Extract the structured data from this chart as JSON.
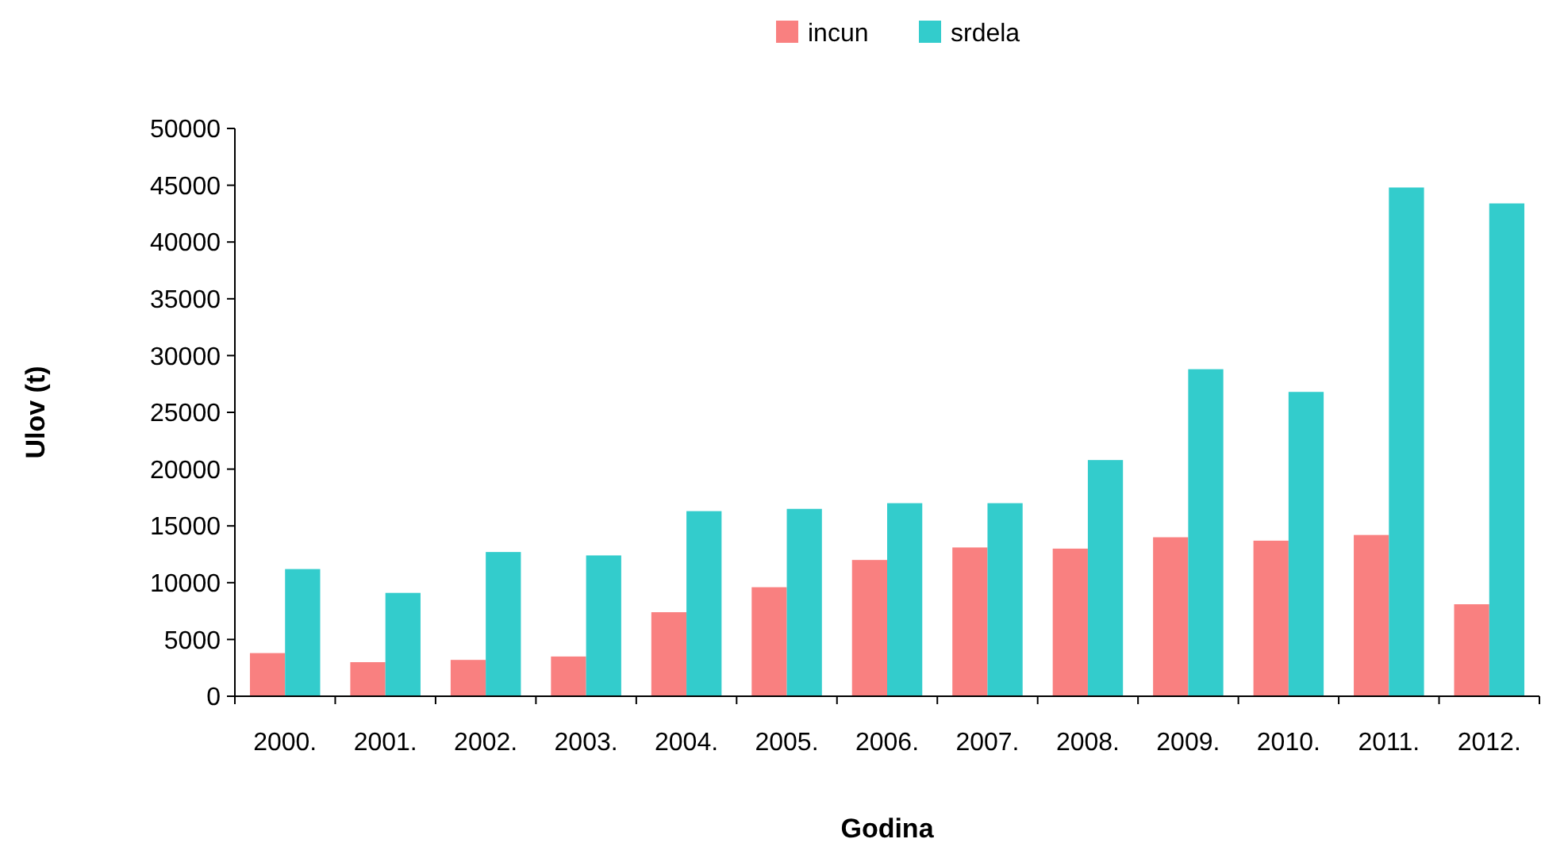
{
  "chart_data": {
    "type": "bar",
    "xlabel": "Godina",
    "ylabel": "Ulov (t)",
    "categories": [
      "2000.",
      "2001.",
      "2002.",
      "2003.",
      "2004.",
      "2005.",
      "2006.",
      "2007.",
      "2008.",
      "2009.",
      "2010.",
      "2011.",
      "2012."
    ],
    "series": [
      {
        "name": "incun",
        "color": "#f98080",
        "values": [
          3800,
          3000,
          3200,
          3500,
          7400,
          9600,
          12000,
          13100,
          13000,
          14000,
          13700,
          14200,
          8100
        ]
      },
      {
        "name": "srdela",
        "color": "#33cccc",
        "values": [
          11200,
          9100,
          12700,
          12400,
          16300,
          16500,
          17000,
          17000,
          20800,
          28800,
          26800,
          44800,
          43400
        ]
      }
    ],
    "ylim": [
      0,
      50000
    ],
    "yticks": [
      0,
      5000,
      10000,
      15000,
      20000,
      25000,
      30000,
      35000,
      40000,
      45000,
      50000
    ],
    "grid": false,
    "legend": "top"
  }
}
